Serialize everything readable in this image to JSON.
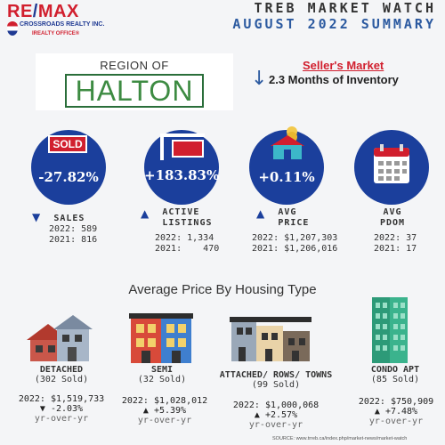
{
  "logo": {
    "brand_left": "RE",
    "brand_right": "MAX",
    "company": "CROSSROADS REALTY INC.",
    "office": "IREALTY OFFICE®"
  },
  "header": {
    "line1": "TREB MARKET WATCH",
    "line2": "AUGUST 2022 SUMMARY"
  },
  "region": {
    "label": "REGION OF",
    "name": "HALTON"
  },
  "market": {
    "type": "Seller's Market",
    "arrow": "↓",
    "inventory": "2.3 Months of Inventory"
  },
  "stats": [
    {
      "value": "-27.82%",
      "arrow": "▼",
      "label1": "SALES",
      "label2": "",
      "y2022": "2022: 589",
      "y2021": "2021: 816"
    },
    {
      "value": "+183.83%",
      "arrow": "▲",
      "label1": "ACTIVE",
      "label2": "LISTINGS",
      "y2022": "2022: 1,334",
      "y2021": "2021:    470"
    },
    {
      "value": "+0.11%",
      "arrow": "▲",
      "label1": "AVG",
      "label2": "PRICE",
      "y2022": "2022: $1,207,303",
      "y2021": "2021: $1,206,016"
    },
    {
      "value": "",
      "arrow": "",
      "label1": "AVG",
      "label2": "PDOM",
      "y2022": "2022: 37",
      "y2021": "2021: 17"
    }
  ],
  "sold_sign": "SOLD",
  "section_title": "Average Price By Housing Type",
  "housing": [
    {
      "type": "DETACHED",
      "sold": "(302 Sold)",
      "price": "2022: $1,519,733",
      "change": "▼ -2.03%",
      "yoy": "yr-over-yr"
    },
    {
      "type": "SEMI",
      "sold": "(32 Sold)",
      "price": "2022: $1,028,012",
      "change": "▲ +5.39%",
      "yoy": "yr-over-yr"
    },
    {
      "type": "ATTACHED/ ROWS/ TOWNS",
      "sold": "(99 Sold)",
      "price": "2022: $1,000,068",
      "change": "▲ +2.57%",
      "yoy": "yr-over-yr"
    },
    {
      "type": "CONDO APT",
      "sold": "(85 Sold)",
      "price": "2022: $750,909",
      "change": "▲ +7.48%",
      "yoy": "yr-over-yr"
    }
  ],
  "source": "SOURCE:  www.trreb.ca/index.php/market-news/market-watch",
  "colors": {
    "navy": "#1b3f9c",
    "red": "#d11f2e",
    "green": "#3d8b42",
    "blue": "#2c5aa0"
  }
}
